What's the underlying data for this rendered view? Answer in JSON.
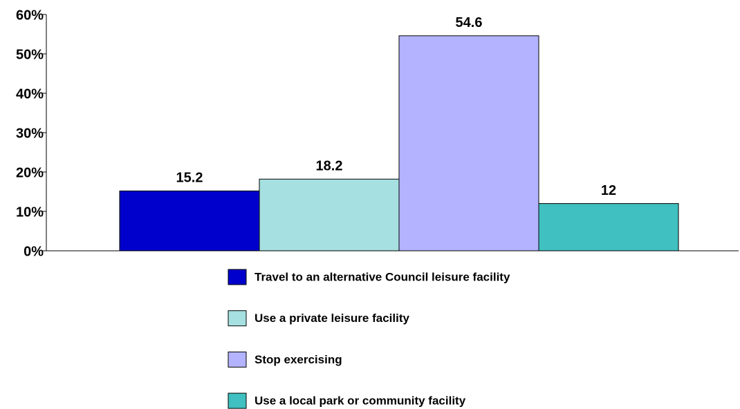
{
  "chart_data": {
    "type": "bar",
    "series": [
      {
        "name": "Travel to an alternative Council leisure facility",
        "color": "#0000cc",
        "values": [
          15.2
        ]
      },
      {
        "name": "Use a private leisure facility",
        "color": "#a6e0e0",
        "values": [
          18.2
        ]
      },
      {
        "name": "Stop exercising",
        "color": "#b3b3ff",
        "values": [
          54.6
        ]
      },
      {
        "name": "Use a local park or community facility",
        "color": "#40c0c0",
        "values": [
          12
        ]
      }
    ],
    "ylim": [
      0,
      60
    ],
    "yticks": [
      {
        "value": 0,
        "label": "0%"
      },
      {
        "value": 10,
        "label": "10%"
      },
      {
        "value": 20,
        "label": "20%"
      },
      {
        "value": 30,
        "label": "30%"
      },
      {
        "value": 40,
        "label": "40%"
      },
      {
        "value": 50,
        "label": "50%"
      },
      {
        "value": 60,
        "label": "60%"
      }
    ]
  }
}
